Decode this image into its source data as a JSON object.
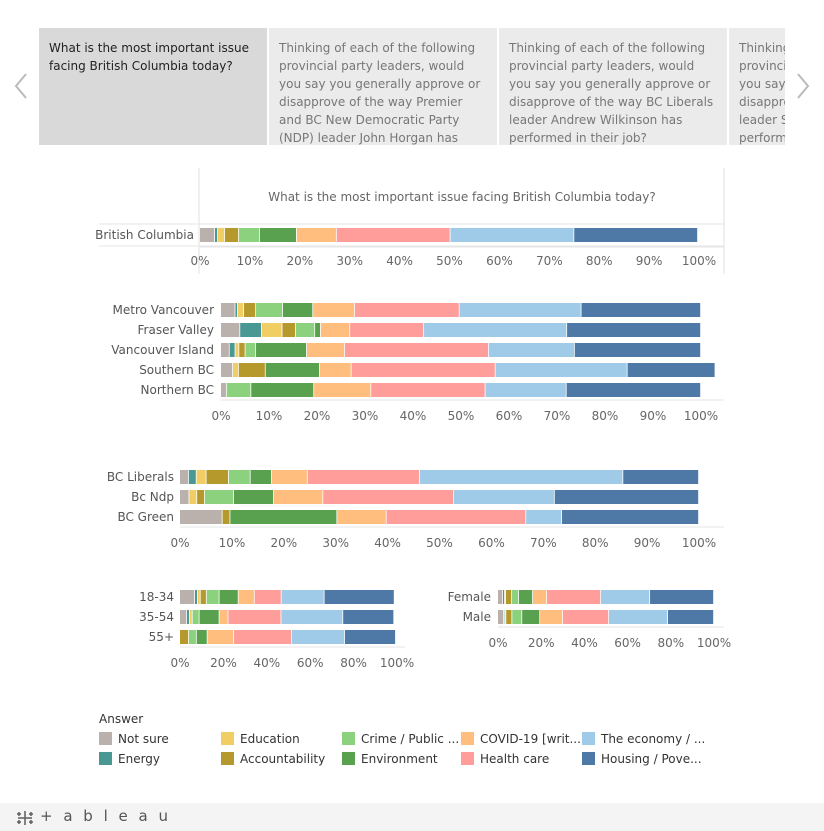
{
  "nav": {
    "prev_icon": "chevron-left-icon",
    "next_icon": "chevron-right-icon"
  },
  "tabs": [
    {
      "label": "What is the most important issue facing British Columbia today?",
      "active": true
    },
    {
      "label": "Thinking of each of the following provincial party leaders, would you say you generally approve or disapprove of the way Premier and BC New Democratic Party (NDP) leader John Horgan has performed in his job?",
      "active": false
    },
    {
      "label": "Thinking of each of the following provincial party leaders, would you say you generally approve or disapprove of the way BC Liberals leader Andrew Wilkinson has performed in their job?",
      "active": false
    },
    {
      "label": "Thinking of each of the following provincial party leaders, would you say you generally approve or disapprove of the way BC Greens leader Sonia Furstenau has performed in her job?",
      "active": false
    }
  ],
  "colors": {
    "Not sure": "#bab0ac",
    "Energy": "#499894",
    "Education": "#f1ce63",
    "Accountability": "#b6992d",
    "Crime / Public ...": "#8cd17d",
    "Environment": "#59a14f",
    "COVID-19 [writ...": "#ffbe7d",
    "Health care": "#ff9d9a",
    "The economy / ...": "#a0cbe8",
    "Housing / Pove...": "#4e79a7"
  },
  "chart_data": [
    {
      "type": "bar",
      "title": "What is the most important issue facing British Columbia today?",
      "categories": [
        "British Columbia"
      ],
      "series": [
        {
          "name": "Not sure",
          "values": [
            3
          ]
        },
        {
          "name": "Energy",
          "values": [
            0.6
          ]
        },
        {
          "name": "Education",
          "values": [
            1.4
          ]
        },
        {
          "name": "Accountability",
          "values": [
            2.8
          ]
        },
        {
          "name": "Crime / Public ...",
          "values": [
            4.2
          ]
        },
        {
          "name": "Environment",
          "values": [
            7.4
          ]
        },
        {
          "name": "COVID-19 [writ...",
          "values": [
            8
          ]
        },
        {
          "name": "Health care",
          "values": [
            22.8
          ]
        },
        {
          "name": "The economy / ...",
          "values": [
            24.8
          ]
        },
        {
          "name": "Housing / Pove...",
          "values": [
            24.8
          ]
        }
      ],
      "xlim": [
        0,
        100
      ],
      "ticks": [
        "0%",
        "10%",
        "20%",
        "30%",
        "40%",
        "50%",
        "60%",
        "70%",
        "80%",
        "90%",
        "100%"
      ]
    },
    {
      "type": "bar",
      "categories": [
        "Metro Vancouver",
        "Fraser Valley",
        "Vancouver Island",
        "Southern BC",
        "Northern BC"
      ],
      "series": [
        {
          "name": "Not sure",
          "values": [
            3,
            4,
            1.8,
            2.5,
            1.2
          ]
        },
        {
          "name": "Energy",
          "values": [
            0.5,
            4.5,
            1.2,
            0,
            0
          ]
        },
        {
          "name": "Education",
          "values": [
            1.3,
            4.3,
            0.8,
            1.2,
            0
          ]
        },
        {
          "name": "Accountability",
          "values": [
            2.5,
            2.8,
            1.3,
            5.6,
            0
          ]
        },
        {
          "name": "Crime / Public ...",
          "values": [
            5.6,
            4,
            2.2,
            0,
            5.1
          ]
        },
        {
          "name": "Environment",
          "values": [
            6.3,
            1.2,
            10.6,
            11.3,
            13.1
          ]
        },
        {
          "name": "COVID-19 [writ...",
          "values": [
            8.7,
            6.1,
            7.9,
            6.6,
            11.9
          ]
        },
        {
          "name": "Health care",
          "values": [
            21.8,
            15.4,
            30,
            30,
            23.8
          ]
        },
        {
          "name": "The economy / ...",
          "values": [
            25.4,
            29.8,
            17.9,
            27.5,
            16.9
          ]
        },
        {
          "name": "Housing / Pove...",
          "values": [
            24.9,
            27.9,
            26.3,
            18.3,
            28
          ]
        }
      ],
      "xlim": [
        0,
        100
      ],
      "ticks": [
        "0%",
        "10%",
        "20%",
        "30%",
        "40%",
        "50%",
        "60%",
        "70%",
        "80%",
        "90%",
        "100%"
      ]
    },
    {
      "type": "bar",
      "categories": [
        "BC Liberals",
        "Bc Ndp",
        "BC Green"
      ],
      "series": [
        {
          "name": "Not sure",
          "values": [
            1.7,
            1.8,
            8.2
          ]
        },
        {
          "name": "Energy",
          "values": [
            1.5,
            0,
            0
          ]
        },
        {
          "name": "Education",
          "values": [
            1.9,
            1.5,
            0
          ]
        },
        {
          "name": "Accountability",
          "values": [
            4.3,
            1.5,
            1.5
          ]
        },
        {
          "name": "Crime / Public ...",
          "values": [
            4.2,
            5.6,
            0
          ]
        },
        {
          "name": "Environment",
          "values": [
            4.1,
            7.7,
            20.6
          ]
        },
        {
          "name": "COVID-19 [writ...",
          "values": [
            6.9,
            9.5,
            9.5
          ]
        },
        {
          "name": "Health care",
          "values": [
            21.6,
            25.2,
            26.9
          ]
        },
        {
          "name": "The economy / ...",
          "values": [
            39.2,
            19.4,
            6.9
          ]
        },
        {
          "name": "Housing / Pove...",
          "values": [
            14.6,
            27.8,
            26.4
          ]
        }
      ],
      "xlim": [
        0,
        100
      ],
      "ticks": [
        "0%",
        "10%",
        "20%",
        "30%",
        "40%",
        "50%",
        "60%",
        "70%",
        "80%",
        "90%",
        "100%"
      ]
    },
    {
      "type": "bar",
      "categories": [
        "18-34",
        "35-54",
        "55+"
      ],
      "series": [
        {
          "name": "Not sure",
          "values": [
            6.9,
            3.2,
            0
          ]
        },
        {
          "name": "Energy",
          "values": [
            1.3,
            1.3,
            0
          ]
        },
        {
          "name": "Education",
          "values": [
            1.3,
            1.3,
            0
          ]
        },
        {
          "name": "Accountability",
          "values": [
            2.8,
            0,
            4.1
          ]
        },
        {
          "name": "Crime / Public ...",
          "values": [
            5.9,
            3.2,
            3.6
          ]
        },
        {
          "name": "Environment",
          "values": [
            8.8,
            9.2,
            5
          ]
        },
        {
          "name": "COVID-19 [writ...",
          "values": [
            7.4,
            4.1,
            12.2
          ]
        },
        {
          "name": "Health care",
          "values": [
            12.4,
            24.4,
            26.7
          ]
        },
        {
          "name": "The economy / ...",
          "values": [
            19.8,
            28.5,
            24.4
          ]
        },
        {
          "name": "Housing / Pove...",
          "values": [
            32.3,
            23.5,
            23.5
          ]
        }
      ],
      "xlim": [
        0,
        100
      ],
      "ticks": [
        "0%",
        "20%",
        "40%",
        "60%",
        "80%",
        "100%"
      ]
    },
    {
      "type": "bar",
      "categories": [
        "Female",
        "Male"
      ],
      "series": [
        {
          "name": "Not sure",
          "values": [
            2.3,
            2.8
          ]
        },
        {
          "name": "Energy",
          "values": [
            0.9,
            0.5
          ]
        },
        {
          "name": "Education",
          "values": [
            0.5,
            0.5
          ]
        },
        {
          "name": "Accountability",
          "values": [
            2.8,
            2.8
          ]
        },
        {
          "name": "Crime / Public ...",
          "values": [
            3.2,
            4.6
          ]
        },
        {
          "name": "Environment",
          "values": [
            6.5,
            8.3
          ]
        },
        {
          "name": "COVID-19 [writ...",
          "values": [
            6.5,
            10.6
          ]
        },
        {
          "name": "Health care",
          "values": [
            25,
            21.3
          ]
        },
        {
          "name": "The economy / ...",
          "values": [
            22.7,
            27.3
          ]
        },
        {
          "name": "Housing / Pove...",
          "values": [
            29.6,
            21.3
          ]
        }
      ],
      "xlim": [
        0,
        100
      ],
      "ticks": [
        "0%",
        "20%",
        "40%",
        "60%",
        "80%",
        "100%"
      ]
    }
  ],
  "legend": {
    "title": "Answer",
    "placement": "bottom-left",
    "items": [
      "Not sure",
      "Education",
      "Crime / Public ...",
      "COVID-19 [writ...",
      "The economy / ...",
      "Energy",
      "Accountability",
      "Environment",
      "Health care",
      "Housing / Pove..."
    ]
  },
  "footer": {
    "brand": "+ a b l e a u",
    "icon": "tableau-logo-icon"
  }
}
